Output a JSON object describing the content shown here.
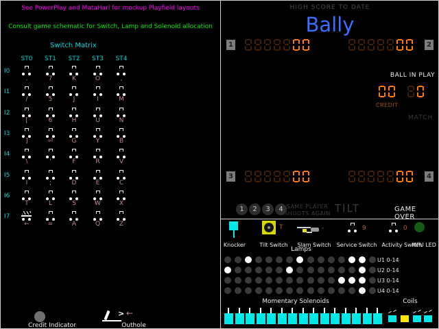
{
  "colors": {
    "magenta": "#ff00ff",
    "green": "#00ee00",
    "cyan": "#00d7d7",
    "keycol": "#c98a8a",
    "segB": "#ff7a04",
    "segD": "#3f1e04",
    "blue": "#3b6eff",
    "korange": "#c06030",
    "sol": "#00e8e8",
    "coilA": "#ffe800",
    "lampL": "#ffffff",
    "lampD": "#3a3a3a"
  },
  "left_panel": {
    "note1": "See PowerPlay and MataHari for mockup Playfield layouts",
    "note2": "Consult game schematic for Switch, Lamp and Solenoid allocation",
    "matrix": {
      "title": "Switch Matrix",
      "columns": [
        "ST0",
        "ST1",
        "ST2",
        "ST3",
        "ST4"
      ],
      "rows": [
        {
          "label": "I0",
          "keys": [
            ".",
            "7",
            "K",
            "O",
            ","
          ],
          "closed": []
        },
        {
          "label": "I1",
          "keys": [
            "/",
            "5",
            "J",
            "I",
            "M"
          ],
          "closed": []
        },
        {
          "label": "I2",
          "keys": [
            "[",
            "6",
            "H",
            "U",
            "N"
          ],
          "closed": []
        },
        {
          "label": "I3",
          "keys": [
            "]",
            "⏎",
            "G",
            "Y",
            "B"
          ],
          "closed": []
        },
        {
          "label": "I4",
          "keys": [
            "\\",
            "'",
            "F",
            "R",
            "V"
          ],
          "closed": []
        },
        {
          "label": "I5",
          "keys": [
            "I",
            ";",
            "D",
            "E",
            "C"
          ],
          "closed": []
        },
        {
          "label": "I6",
          "keys": [
            "T",
            "L",
            "S",
            "W",
            "X"
          ],
          "closed": []
        },
        {
          "label": "I7",
          "keys": [
            "←",
            "=",
            "A",
            "Q",
            "Z"
          ],
          "closed": [
            0
          ]
        }
      ]
    },
    "credit_indicator": {
      "label": "Credit Indicator"
    },
    "outhole": {
      "label": "Outhole",
      "chevron": ">",
      "arrow": "←"
    }
  },
  "scoreboard": {
    "high_score_label": "HIGH SCORE TO DATE",
    "brand": "Bally",
    "players": [
      {
        "badge": "1",
        "dim": "88888",
        "bright": "00"
      },
      {
        "badge": "2",
        "dim": "88888",
        "bright": "00"
      },
      {
        "badge": "3",
        "dim": "88888",
        "bright": "00"
      },
      {
        "badge": "4",
        "dim": "88888",
        "bright": "00"
      }
    ],
    "ball_in_play_label": "BALL IN PLAY",
    "credit": {
      "label": "CREDIT",
      "dim": "",
      "bright": "00"
    },
    "match": {
      "label": "MATCH",
      "dim": "8",
      "bright": "0"
    },
    "status": {
      "ball_circles": [
        "1",
        "2",
        "3",
        "4"
      ],
      "same_player_line1": "SAME PLAYER",
      "same_player_line2": "SHOOTS AGAIN",
      "tilt": "TILT",
      "game_over": "GAME OVER"
    }
  },
  "control_panel": {
    "switches": [
      {
        "label": "Knocker",
        "key": ""
      },
      {
        "label": "Tilt Switch",
        "key": "T"
      },
      {
        "label": "Slam Switch",
        "key": "-"
      },
      {
        "label": "Service Switch",
        "key": "9"
      },
      {
        "label": "Activity Switch",
        "key": "0"
      },
      {
        "label": "MPU LED",
        "key": ""
      }
    ],
    "lamps": {
      "title": "Lamps",
      "count": 15,
      "rows": [
        {
          "label": "U1 0-14",
          "lit": [
            2,
            7,
            12,
            13
          ]
        },
        {
          "label": "U2 0-14",
          "lit": [
            0,
            6,
            13
          ]
        },
        {
          "label": "U3 0-14",
          "lit": [
            11,
            12,
            13
          ]
        },
        {
          "label": "U4 0-14",
          "lit": [
            13
          ]
        }
      ]
    },
    "solenoids": {
      "title": "Momentary Solenoids",
      "count": 15
    },
    "coils": {
      "title": "Coils",
      "states": [
        "idle",
        "active",
        "idle",
        "idle"
      ]
    }
  }
}
